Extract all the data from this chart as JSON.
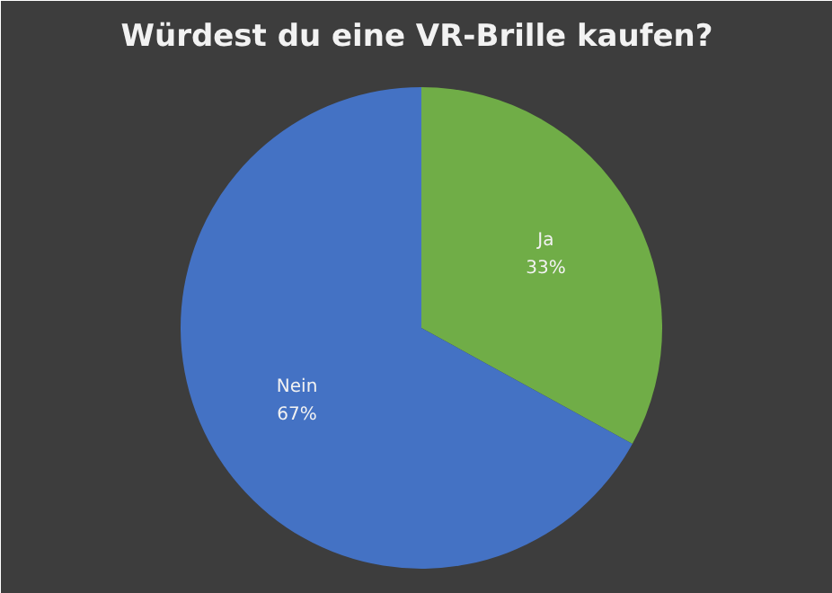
{
  "chart_data": {
    "type": "pie",
    "title": "Würdest du eine VR-Brille kaufen?",
    "categories": [
      "Ja",
      "Nein"
    ],
    "values": [
      33,
      67
    ],
    "colors": [
      "#70ad47",
      "#4472c4"
    ],
    "value_labels": [
      "33%",
      "67%"
    ]
  }
}
